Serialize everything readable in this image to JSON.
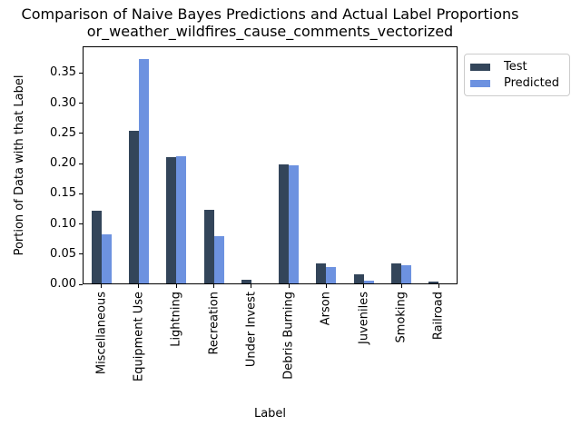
{
  "chart_data": {
    "type": "bar",
    "title": "Comparison of Naive Bayes Predictions and Actual Label Proportions",
    "subtitle": "or_weather_wildfires_cause_comments_vectorized",
    "xlabel": "Label",
    "ylabel": "Portion of Data with that Label",
    "categories": [
      "Miscellaneous",
      "Equipment Use",
      "Lightning",
      "Recreation",
      "Under Invest",
      "Debris Burning",
      "Arson",
      "Juveniles",
      "Smoking",
      "Railroad"
    ],
    "series": [
      {
        "name": "Test",
        "color": "#33455a",
        "values": [
          0.122,
          0.254,
          0.21,
          0.124,
          0.008,
          0.199,
          0.035,
          0.016,
          0.034,
          0.004
        ]
      },
      {
        "name": "Predicted",
        "color": "#6d92e0",
        "values": [
          0.082,
          0.373,
          0.212,
          0.08,
          0.001,
          0.197,
          0.028,
          0.006,
          0.031,
          0.001
        ]
      }
    ],
    "ylim": [
      0,
      0.394
    ],
    "y_ticks": [
      0.0,
      0.05,
      0.1,
      0.15,
      0.2,
      0.25,
      0.3,
      0.35
    ],
    "grid": false,
    "legend_position": "upper right (outside axes)"
  }
}
